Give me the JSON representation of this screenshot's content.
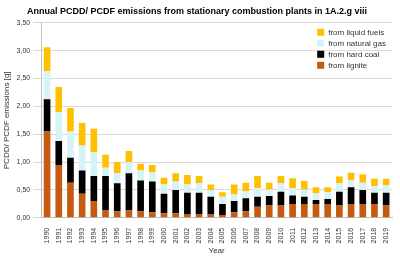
{
  "chart_data": {
    "type": "bar",
    "title": "Annual PCDD/ PCDF emissions from stationary combustion plants in 1A.2.g viii",
    "x_label": "Year",
    "y_label": "PCDD/ PCDF emissions [g]",
    "categories": [
      "1990",
      "1991",
      "1992",
      "1993",
      "1994",
      "1995",
      "1996",
      "1997",
      "1998",
      "1999",
      "2000",
      "2001",
      "2002",
      "2003",
      "2004",
      "2005",
      "2006",
      "2007",
      "2008",
      "2009",
      "2010",
      "2011",
      "2012",
      "2013",
      "2014",
      "2015",
      "2016",
      "2017",
      "2018",
      "2019"
    ],
    "series": [
      {
        "name": "from lignite",
        "color": "#c55a11",
        "values": [
          1.55,
          0.95,
          0.63,
          0.43,
          0.3,
          0.13,
          0.12,
          0.13,
          0.12,
          0.1,
          0.08,
          0.08,
          0.07,
          0.07,
          0.06,
          0.05,
          0.1,
          0.12,
          0.2,
          0.22,
          0.22,
          0.25,
          0.25,
          0.25,
          0.24,
          0.22,
          0.25,
          0.25,
          0.25,
          0.22
        ]
      },
      {
        "name": "from hard coal",
        "color": "#000000",
        "values": [
          0.58,
          0.43,
          0.45,
          0.42,
          0.45,
          0.62,
          0.5,
          0.67,
          0.55,
          0.55,
          0.35,
          0.42,
          0.38,
          0.38,
          0.32,
          0.2,
          0.2,
          0.23,
          0.18,
          0.17,
          0.25,
          0.15,
          0.13,
          0.07,
          0.1,
          0.25,
          0.3,
          0.25,
          0.2,
          0.23
        ]
      },
      {
        "name": "from natural gas",
        "color": "#d6f3f7",
        "values": [
          0.5,
          0.52,
          0.47,
          0.45,
          0.43,
          0.15,
          0.18,
          0.2,
          0.18,
          0.17,
          0.17,
          0.15,
          0.15,
          0.17,
          0.12,
          0.13,
          0.12,
          0.13,
          0.15,
          0.12,
          0.15,
          0.13,
          0.13,
          0.12,
          0.12,
          0.15,
          0.13,
          0.13,
          0.12,
          0.13
        ]
      },
      {
        "name": "from liquid fuels",
        "color": "#ffc000",
        "values": [
          0.43,
          0.45,
          0.42,
          0.4,
          0.42,
          0.23,
          0.2,
          0.2,
          0.12,
          0.13,
          0.12,
          0.15,
          0.17,
          0.13,
          0.1,
          0.08,
          0.18,
          0.15,
          0.22,
          0.12,
          0.13,
          0.18,
          0.15,
          0.11,
          0.09,
          0.12,
          0.13,
          0.15,
          0.13,
          0.12
        ]
      }
    ],
    "stacked": true,
    "grid": true,
    "legend": "upper right",
    "ylim": [
      0,
      3.5
    ],
    "yticks": [
      {
        "value": 0,
        "label": "0,00"
      },
      {
        "value": 0.5,
        "label": "0,50"
      },
      {
        "value": 1,
        "label": "1,00"
      },
      {
        "value": 1.5,
        "label": "1,50"
      },
      {
        "value": 2,
        "label": "2,00"
      },
      {
        "value": 2.5,
        "label": "2,50"
      },
      {
        "value": 3,
        "label": "3,00"
      },
      {
        "value": 3.5,
        "label": "3,50"
      }
    ]
  }
}
